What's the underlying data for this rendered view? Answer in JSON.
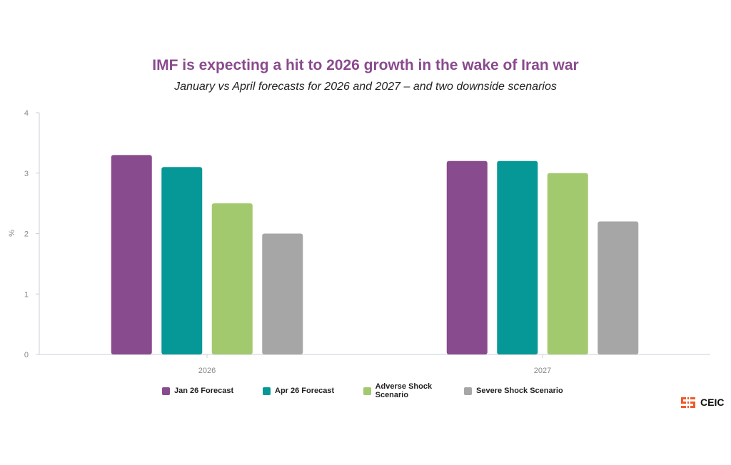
{
  "chart_data": {
    "type": "bar",
    "title": "IMF is expecting a hit to 2026 growth in the wake of Iran war",
    "subtitle": "January vs April forecasts for 2026 and 2027 – and two downside scenarios",
    "xlabel": "",
    "ylabel": "%",
    "ylim": [
      0,
      4
    ],
    "yticks": [
      0,
      1,
      2,
      3,
      4
    ],
    "categories": [
      "2026",
      "2027"
    ],
    "series": [
      {
        "name": "Jan 26 Forecast",
        "color": "#884b8e",
        "values": [
          3.3,
          3.2
        ]
      },
      {
        "name": "Apr 26 Forecast",
        "color": "#069896",
        "values": [
          3.1,
          3.2
        ]
      },
      {
        "name": "Adverse Shock Scenario",
        "color": "#a3c96e",
        "values": [
          2.5,
          3.0
        ]
      },
      {
        "name": "Severe Shock Scenario",
        "color": "#a6a6a6",
        "values": [
          2.0,
          2.2
        ]
      }
    ],
    "legend": "bottom",
    "grid": false
  },
  "branding": {
    "logo": "CEIC"
  }
}
